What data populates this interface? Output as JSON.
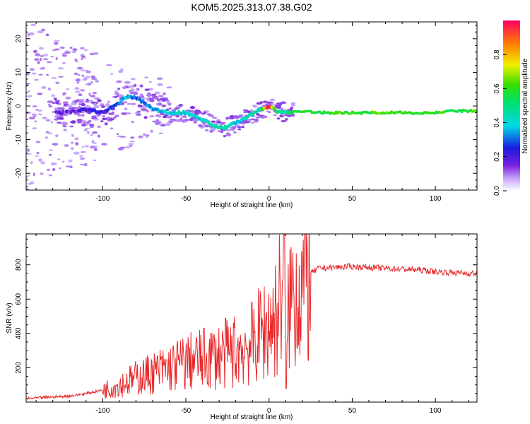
{
  "chart_data": [
    {
      "type": "heatmap",
      "title": "KOM5.2025.313.07.38.G02",
      "xlabel": "Height of straight line (km)",
      "ylabel": "Frequency (Hz)",
      "xlim": [
        -146,
        125
      ],
      "ylim": [
        -25,
        25
      ],
      "xticks": [
        -100,
        -50,
        0,
        50,
        100
      ],
      "xtick_labels": [
        "-100",
        "-50",
        "0",
        "50",
        "100"
      ],
      "yticks": [
        20,
        10,
        0,
        -10,
        -20
      ],
      "ytick_labels": [
        "20",
        "10",
        "0",
        "-10",
        "-20"
      ],
      "ridge": {
        "x": [
          -125,
          -110,
          -100,
          -90,
          -85,
          -78,
          -70,
          -60,
          -50,
          -40,
          -33,
          -27,
          -20,
          -12,
          -5,
          0,
          5,
          10,
          20,
          30,
          40,
          50,
          60,
          70,
          80,
          90,
          100,
          110,
          125
        ],
        "y": [
          -2,
          -1,
          -2,
          1,
          3,
          2,
          -1,
          -2,
          -2,
          -4,
          -6,
          -6.5,
          -5,
          -3,
          -1,
          0,
          -1.5,
          -2,
          -1.5,
          -2,
          -2,
          -2,
          -2,
          -2,
          -2,
          -2,
          -2,
          -1.5,
          -1.5
        ],
        "amplitude": [
          0.15,
          0.2,
          0.22,
          0.3,
          0.35,
          0.3,
          0.35,
          0.4,
          0.4,
          0.38,
          0.45,
          0.45,
          0.4,
          0.42,
          0.45,
          0.95,
          0.5,
          0.5,
          0.6,
          0.55,
          0.6,
          0.58,
          0.6,
          0.62,
          0.58,
          0.6,
          0.62,
          0.55,
          0.6
        ]
      },
      "colorbar": {
        "label": "Normalized spectral amplitude",
        "range": [
          0,
          1
        ],
        "ticks": [
          0.0,
          0.2,
          0.4,
          0.6,
          0.8
        ],
        "tick_labels": [
          "0.0",
          "0.2",
          "0.4",
          "0.6",
          "0.8"
        ]
      }
    },
    {
      "type": "line",
      "xlabel": "Height of straight line (km)",
      "ylabel": "SNR (v/v)",
      "xlim": [
        -146,
        125
      ],
      "ylim": [
        0,
        980
      ],
      "xticks": [
        -100,
        -50,
        0,
        50,
        100
      ],
      "xtick_labels": [
        "-100",
        "-50",
        "0",
        "50",
        "100"
      ],
      "yticks": [
        200,
        400,
        600,
        800
      ],
      "ytick_labels": [
        "200",
        "400",
        "600",
        "800"
      ],
      "series": [
        {
          "name": "SNR",
          "color": "#e8282b",
          "x": [
            -146,
            -130,
            -120,
            -110,
            -100,
            -90,
            -80,
            -70,
            -60,
            -50,
            -40,
            -30,
            -20,
            -10,
            -5,
            0,
            5,
            8,
            9,
            10,
            12,
            15,
            20,
            25,
            30,
            40,
            50,
            60,
            70,
            80,
            90,
            100,
            110,
            120,
            125
          ],
          "y": [
            20,
            30,
            35,
            50,
            70,
            100,
            140,
            170,
            200,
            230,
            250,
            270,
            300,
            340,
            400,
            450,
            500,
            700,
            970,
            80,
            600,
            640,
            690,
            750,
            780,
            785,
            790,
            785,
            780,
            775,
            770,
            760,
            755,
            750,
            750
          ]
        }
      ]
    }
  ]
}
